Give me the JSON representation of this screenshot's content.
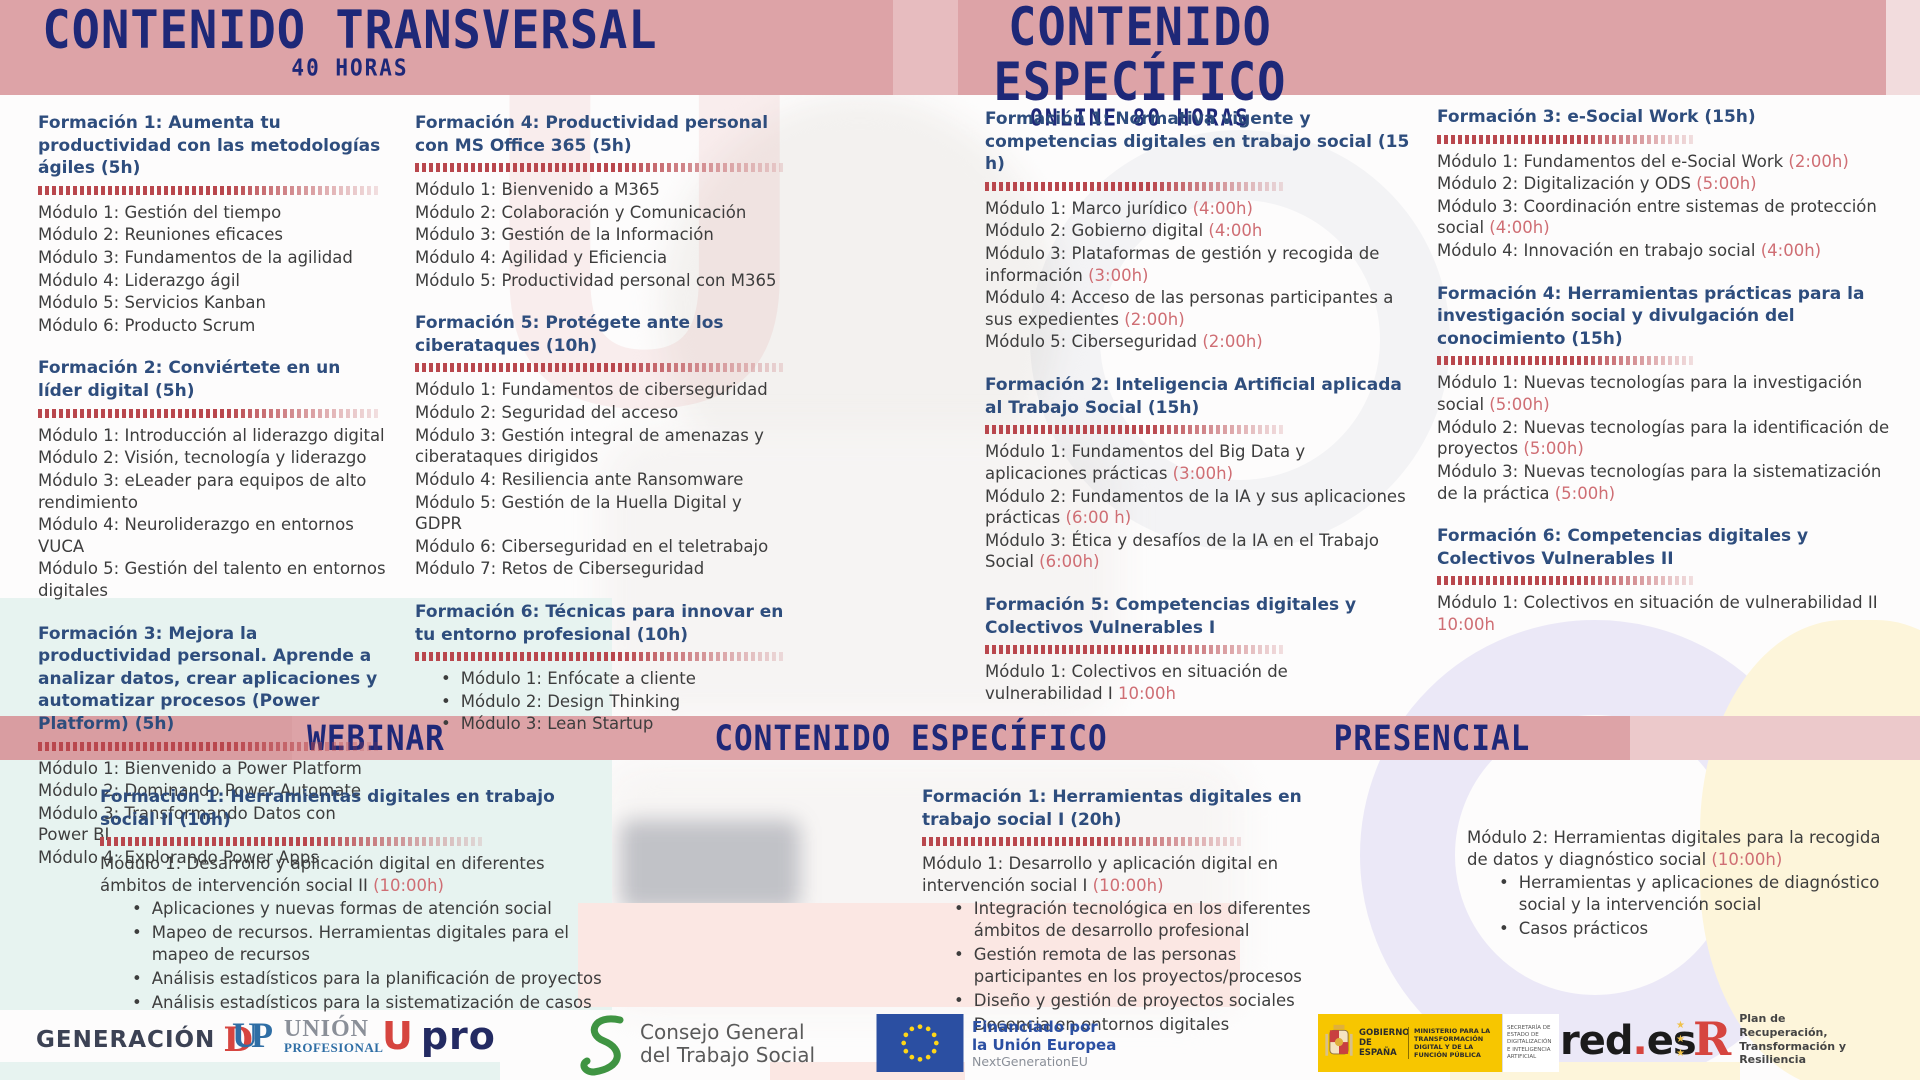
{
  "header": {
    "left": {
      "title": "CONTENIDO TRANSVERSAL",
      "subtitle": "40 HORAS"
    },
    "right": {
      "title": "CONTENIDO ESPECÍFICO",
      "subtitle": "ONLINE 80 HORAS"
    }
  },
  "mid_banner": {
    "webinar": "WEBINAR",
    "especifico": "CONTENIDO ESPECÍFICO",
    "presencial": "PRESENCIAL"
  },
  "top_columns": [
    {
      "courses": [
        {
          "title": "Formación 1: Aumenta tu productividad con las metodologías ágiles  (5h)",
          "modules": [
            {
              "text": "Módulo 1: Gestión del tiempo"
            },
            {
              "text": "Módulo 2: Reuniones eficaces"
            },
            {
              "text": "Módulo 3: Fundamentos de la agilidad"
            },
            {
              "text": "Módulo 4: Liderazgo ágil"
            },
            {
              "text": "Módulo 5: Servicios Kanban"
            },
            {
              "text": "Módulo 6: Producto Scrum"
            }
          ]
        },
        {
          "title": "Formación 2: Conviértete en un líder digital (5h)",
          "modules": [
            {
              "text": "Módulo 1: Introducción al liderazgo digital"
            },
            {
              "text": "Módulo 2: Visión, tecnología y liderazgo"
            },
            {
              "text": " Módulo 3: eLeader para equipos de alto rendimiento"
            },
            {
              "text": "Módulo 4: Neuroliderazgo en entornos VUCA"
            },
            {
              "text": "Módulo 5: Gestión del talento en entornos digitales"
            }
          ]
        },
        {
          "title": "Formación 3: Mejora la productividad personal. Aprende a analizar datos, crear aplicaciones y automatizar procesos (Power Platform) (5h)",
          "modules": [
            {
              "text": "Módulo 1: Bienvenido a Power Platform"
            },
            {
              "text": "Módulo 2: Dominando Power Automate"
            },
            {
              "text": "Módulo 3: Transformando Datos con Power BI"
            },
            {
              "text": " Módulo 4: Explorando Power Apps"
            }
          ]
        }
      ]
    },
    {
      "courses": [
        {
          "title": "Formación 4: Productividad personal con MS Office 365 (5h)",
          "modules": [
            {
              "text": " Módulo 1: Bienvenido a M365"
            },
            {
              "text": " Módulo 2: Colaboración y Comunicación"
            },
            {
              "text": " Módulo 3: Gestión de la Información"
            },
            {
              "text": " Módulo 4: Agilidad y Eficiencia"
            },
            {
              "text": " Módulo 5: Productividad personal con M365"
            }
          ]
        },
        {
          "title": "Formación 5: Protégete ante los ciberataques (10h)",
          "modules": [
            {
              "text": "Módulo 1: Fundamentos de ciberseguridad"
            },
            {
              "text": "Módulo 2: Seguridad del acceso"
            },
            {
              "text": "Módulo 3: Gestión integral de amenazas y ciberataques dirigidos"
            },
            {
              "text": "Módulo 4: Resiliencia ante Ransomware"
            },
            {
              "text": "Módulo 5: Gestión de la Huella Digital y GDPR"
            },
            {
              "text": "Módulo 6: Ciberseguridad en el teletrabajo"
            },
            {
              "text": "Módulo 7: Retos de Ciberseguridad"
            }
          ]
        },
        {
          "title": "Formación 6: Técnicas para innovar en tu entorno profesional (10h)",
          "bulleted": true,
          "modules": [
            {
              "text": "Módulo 1: Enfócate a cliente"
            },
            {
              "text": "Módulo 2: Design Thinking"
            },
            {
              "text": "Módulo 3: Lean Startup"
            }
          ]
        }
      ]
    },
    {
      "courses": [
        {
          "title": "Formación 1: Normativa vigente y competencias digitales en trabajo social (15 h)",
          "modules": [
            {
              "text": "Módulo 1: Marco jurídico ",
              "time": "(4:00h)"
            },
            {
              "text": "Módulo 2: Gobierno digital ",
              "time": "(4:00h"
            },
            {
              "text": "Módulo 3: Plataformas de gestión y recogida de información ",
              "time": "(3:00h)"
            },
            {
              "text": "Módulo 4: Acceso de las personas participantes a sus expedientes ",
              "time": "(2:00h)"
            },
            {
              "text": "Módulo 5: Ciberseguridad ",
              "time": "(2:00h)"
            }
          ]
        },
        {
          "title": "Formación 2: Inteligencia Artificial aplicada al Trabajo Social (15h)",
          "modules": [
            {
              "text": "Módulo 1: Fundamentos del Big Data y aplicaciones prácticas ",
              "time": "(3:00h)"
            },
            {
              "text": "Módulo 2: Fundamentos de la IA y sus aplicaciones prácticas ",
              "time": "(6:00 h)"
            },
            {
              "text": "Módulo 3: Ética y desafíos de la IA en el Trabajo Social ",
              "time": "(6:00h)"
            }
          ]
        },
        {
          "title": "Formación 5:  Competencias digitales y Colectivos Vulnerables I",
          "modules": [
            {
              "text": "Módulo 1: Colectivos en situación de vulnerabilidad I ",
              "time": "10:00h"
            }
          ]
        }
      ]
    },
    {
      "courses": [
        {
          "title": "Formación 3: e-Social Work (15h)",
          "modules": [
            {
              "text": "Módulo 1: Fundamentos del e-Social Work ",
              "time": "(2:00h)"
            },
            {
              "text": "Módulo 2: Digitalización y ODS ",
              "time": "(5:00h)"
            },
            {
              "text": "Módulo 3: Coordinación entre sistemas de protección social ",
              "time": "(4:00h)"
            },
            {
              "text": "Módulo 4: Innovación en trabajo social  ",
              "time": "(4:00h)"
            }
          ]
        },
        {
          "title": "Formación 4: Herramientas prácticas para la investigación social y divulgación del conocimiento (15h)",
          "modules": [
            {
              "text": " Módulo 1: Nuevas tecnologías para la investigación social ",
              "time": "(5:00h)"
            },
            {
              "text": "Módulo 2: Nuevas tecnologías para la identificación de proyectos ",
              "time": "(5:00h)"
            },
            {
              "text": "Módulo 3: Nuevas tecnologías para la sistematización de la práctica ",
              "time": "(5:00h)"
            }
          ]
        },
        {
          "title": "Formación 6:  Competencias digitales y Colectivos Vulnerables II",
          "modules": [
            {
              "text": "Módulo 1: Colectivos en situación de vulnerabilidad II ",
              "time": "10:00h"
            }
          ]
        }
      ]
    }
  ],
  "bottom_columns": [
    {
      "courses": [
        {
          "title": "Formación 1: Herramientas digitales en trabajo social II (10h)",
          "modules": [
            {
              "text": "Módulo 1: Desarrollo y aplicación digital en diferentes ámbitos de intervención social II ",
              "time": "(10:00h)",
              "bullets": [
                "Aplicaciones y nuevas formas de atención social",
                "Mapeo de recursos. Herramientas digitales para el mapeo de recursos",
                "Análisis estadísticos para la planificación de proyectos",
                "Análisis estadísticos para la sistematización de casos"
              ]
            }
          ]
        }
      ]
    },
    {
      "courses": [
        {
          "title": "Formación 1: Herramientas digitales en trabajo social I (20h)",
          "modules": [
            {
              "text": "Módulo 1: Desarrollo y aplicación digital en intervención social I ",
              "time": "(10:00h)",
              "bullets": [
                "Integración  tecnológica en los diferentes ámbitos de desarrollo profesional",
                "Gestión remota de las personas participantes en los proyectos/procesos",
                "Diseño y gestión de proyectos sociales",
                "Docencia en entornos digitales"
              ]
            }
          ]
        }
      ]
    },
    {
      "courses": [
        {
          "separator": false,
          "modules": [
            {
              "text": "Módulo 2: Herramientas digitales para la recogida de datos y diagnóstico social ",
              "time": "(10:00h)",
              "bullets": [
                "Herramientas y aplicaciones de diagnóstico social y la intervención social",
                "Casos prácticos"
              ]
            }
          ]
        }
      ]
    }
  ],
  "footer": {
    "generacion": {
      "text": "GENERACIÓN",
      "d": "D"
    },
    "union_profesional": {
      "monogram": "UP",
      "line1": "UNIÓN",
      "line2": "PROFESIONAL"
    },
    "upro": {
      "u": "U",
      "pro": "pro"
    },
    "consejo": {
      "line1": "Consejo General",
      "line2": "del Trabajo Social"
    },
    "eu": {
      "line1": "Financiado por",
      "line2": "la Unión Europea",
      "line3": "NextGenerationEU"
    },
    "gobierno": {
      "gov1": "GOBIERNO",
      "gov2": "DE ESPAÑA",
      "ministry": "MINISTERIO PARA LA TRANSFORMACIÓN DIGITAL Y DE LA FUNCIÓN PÚBLICA",
      "secretaria": "SECRETARÍA DE ESTADO DE DIGITALIZACIÓN E INTELIGENCIA ARTIFICIAL"
    },
    "redes": {
      "red": "red",
      "dot": ".",
      "es": "es"
    },
    "plan": {
      "r": "R",
      "text": "Plan de Recuperación, Transformación y Resiliencia"
    }
  }
}
